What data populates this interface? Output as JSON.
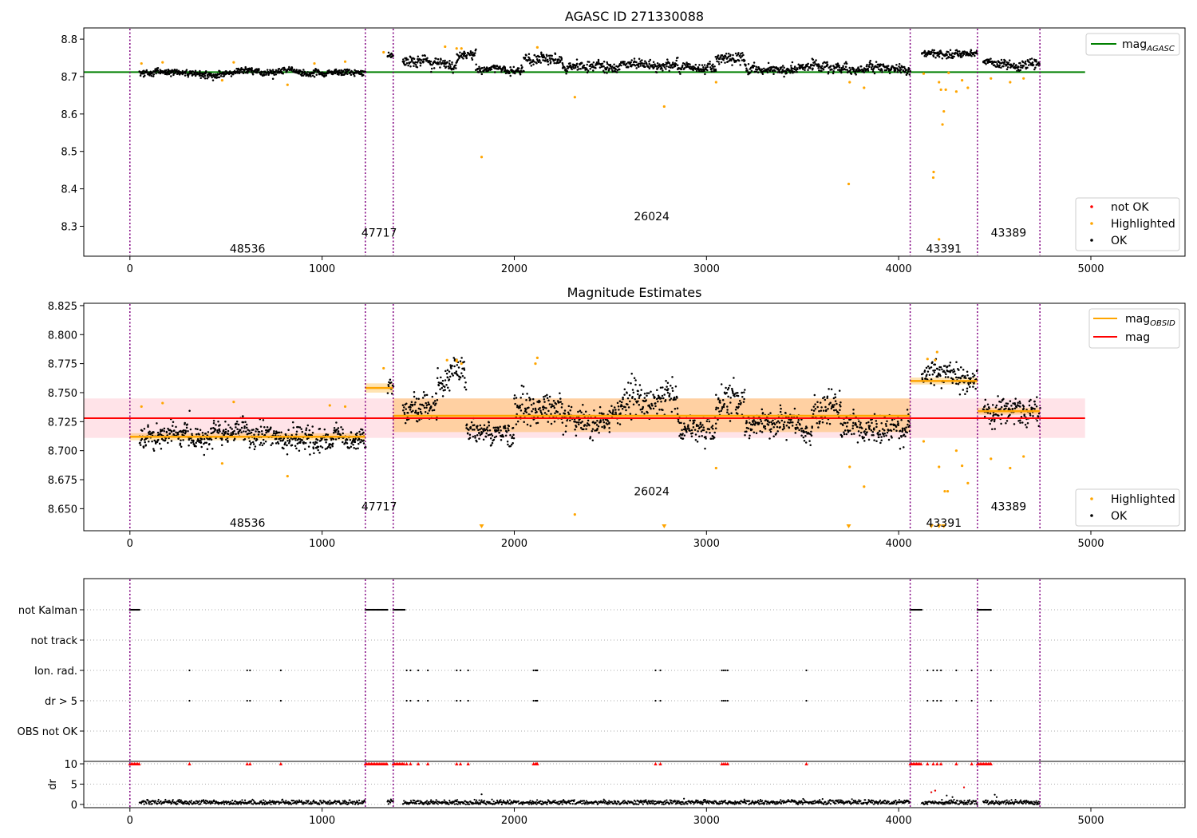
{
  "chart_data": [
    {
      "type": "scatter",
      "title": "AGASC ID 271330088",
      "xlim": [
        -240,
        5490
      ],
      "ylim": [
        8.22,
        8.83
      ],
      "xticks": [
        0,
        1000,
        2000,
        3000,
        4000,
        5000
      ],
      "yticks": [
        8.3,
        8.4,
        8.5,
        8.6,
        8.7,
        8.8
      ],
      "ytick_labels": [
        "8.3",
        "8.4",
        "8.5",
        "8.6",
        "8.7",
        "8.8"
      ],
      "legend_top": {
        "position": "top-right",
        "entries": [
          {
            "label_main": "mag",
            "label_sub": "AGASC",
            "color": "#008000"
          }
        ]
      },
      "legend_bottom": {
        "position": "bottom-right",
        "entries": [
          {
            "label": "not OK",
            "color": "#ff0000"
          },
          {
            "label": "Highlighted",
            "color": "#ffa500"
          },
          {
            "label": "OK",
            "color": "#000000"
          }
        ]
      },
      "mag_agasc": 8.712,
      "mag_agasc_x": [
        -240,
        4970
      ],
      "obsid_boundaries": [
        0,
        1225,
        1370,
        4060,
        4410,
        4735
      ],
      "obsid_labels": [
        {
          "text": "48536",
          "x": 612,
          "y": 8.24
        },
        {
          "text": "47717",
          "x": 1297,
          "y": 8.283
        },
        {
          "text": "26024",
          "x": 2715,
          "y": 8.327
        },
        {
          "text": "43391",
          "x": 4235,
          "y": 8.24
        },
        {
          "text": "43389",
          "x": 4572,
          "y": 8.283
        }
      ],
      "highlighted_outliers": [
        {
          "x": 1830,
          "y": 8.485
        },
        {
          "x": 2315,
          "y": 8.645
        },
        {
          "x": 2780,
          "y": 8.62
        },
        {
          "x": 3050,
          "y": 8.685
        },
        {
          "x": 3740,
          "y": 8.413
        },
        {
          "x": 3745,
          "y": 8.685
        },
        {
          "x": 3820,
          "y": 8.67
        },
        {
          "x": 4130,
          "y": 8.708
        },
        {
          "x": 4180,
          "y": 8.43
        },
        {
          "x": 4182,
          "y": 8.445
        },
        {
          "x": 4210,
          "y": 8.685
        },
        {
          "x": 4220,
          "y": 8.665
        },
        {
          "x": 4228,
          "y": 8.572
        },
        {
          "x": 4235,
          "y": 8.607
        },
        {
          "x": 4245,
          "y": 8.665
        },
        {
          "x": 4260,
          "y": 8.71
        },
        {
          "x": 4300,
          "y": 8.66
        },
        {
          "x": 4330,
          "y": 8.69
        },
        {
          "x": 4360,
          "y": 8.67
        },
        {
          "x": 4210,
          "y": 8.265
        },
        {
          "x": 4480,
          "y": 8.695
        },
        {
          "x": 4580,
          "y": 8.685
        },
        {
          "x": 4650,
          "y": 8.695
        },
        {
          "x": 820,
          "y": 8.678
        },
        {
          "x": 480,
          "y": 8.69
        }
      ],
      "series_segments": [
        {
          "x0": 50,
          "x1": 1225,
          "level": 8.71,
          "amp": 0.007,
          "density": 0.5
        },
        {
          "x0": 1340,
          "x1": 1370,
          "level": 8.755,
          "amp": 0.006,
          "density": 0.4
        },
        {
          "x0": 1420,
          "x1": 1700,
          "level": 8.74,
          "amp": 0.012,
          "density": 0.45
        },
        {
          "x0": 1700,
          "x1": 1800,
          "level": 8.755,
          "amp": 0.01,
          "density": 0.45
        },
        {
          "x0": 1800,
          "x1": 2050,
          "level": 8.72,
          "amp": 0.008,
          "density": 0.45
        },
        {
          "x0": 2050,
          "x1": 2250,
          "level": 8.745,
          "amp": 0.012,
          "density": 0.45
        },
        {
          "x0": 2250,
          "x1": 2550,
          "level": 8.725,
          "amp": 0.01,
          "density": 0.45
        },
        {
          "x0": 2550,
          "x1": 2850,
          "level": 8.735,
          "amp": 0.012,
          "density": 0.45
        },
        {
          "x0": 2850,
          "x1": 3050,
          "level": 8.722,
          "amp": 0.01,
          "density": 0.45
        },
        {
          "x0": 3050,
          "x1": 3200,
          "level": 8.745,
          "amp": 0.012,
          "density": 0.45
        },
        {
          "x0": 3200,
          "x1": 3550,
          "level": 8.72,
          "amp": 0.01,
          "density": 0.45
        },
        {
          "x0": 3550,
          "x1": 3700,
          "level": 8.73,
          "amp": 0.012,
          "density": 0.45
        },
        {
          "x0": 3700,
          "x1": 4060,
          "level": 8.72,
          "amp": 0.01,
          "density": 0.45
        },
        {
          "x0": 4120,
          "x1": 4410,
          "level": 8.762,
          "amp": 0.008,
          "density": 0.45
        },
        {
          "x0": 4440,
          "x1": 4735,
          "level": 8.735,
          "amp": 0.009,
          "density": 0.45
        }
      ]
    },
    {
      "type": "scatter",
      "title": "Magnitude Estimates",
      "xlim": [
        -240,
        5490
      ],
      "ylim": [
        8.631,
        8.827
      ],
      "xticks": [
        0,
        1000,
        2000,
        3000,
        4000,
        5000
      ],
      "yticks": [
        8.65,
        8.675,
        8.7,
        8.725,
        8.75,
        8.775,
        8.8,
        8.825
      ],
      "ytick_labels": [
        "8.650",
        "8.675",
        "8.700",
        "8.725",
        "8.750",
        "8.775",
        "8.800",
        "8.825"
      ],
      "legend_top": {
        "position": "top-right",
        "entries": [
          {
            "label_main": "mag",
            "label_sub": "OBSID",
            "color": "#ffa500"
          },
          {
            "label_main": "mag",
            "label_sub": "",
            "color": "#ff0000"
          }
        ]
      },
      "legend_bottom": {
        "position": "bottom-right",
        "entries": [
          {
            "label": "Highlighted",
            "color": "#ffa500"
          },
          {
            "label": "OK",
            "color": "#000000"
          }
        ]
      },
      "mag_line": 8.728,
      "mag_line_x": [
        -240,
        4970
      ],
      "mag_band": [
        8.711,
        8.745
      ],
      "obsid_boundaries": [
        0,
        1225,
        1370,
        4060,
        4410,
        4735
      ],
      "obsid_mags": [
        {
          "x0": 0,
          "x1": 1225,
          "mag": 8.712,
          "band": [
            8.709,
            8.715
          ]
        },
        {
          "x0": 1225,
          "x1": 1370,
          "mag": 8.754,
          "band": [
            8.75,
            8.758
          ]
        },
        {
          "x0": 1370,
          "x1": 4060,
          "mag": 8.73,
          "band": [
            8.716,
            8.745
          ]
        },
        {
          "x0": 4060,
          "x1": 4410,
          "mag": 8.76,
          "band": [
            8.757,
            8.763
          ]
        },
        {
          "x0": 4410,
          "x1": 4735,
          "mag": 8.734,
          "band": [
            8.731,
            8.737
          ]
        }
      ],
      "obsid_labels": [
        {
          "text": "48536",
          "x": 612,
          "y": 8.638
        },
        {
          "text": "47717",
          "x": 1297,
          "y": 8.652
        },
        {
          "text": "26024",
          "x": 2715,
          "y": 8.665
        },
        {
          "text": "43391",
          "x": 4235,
          "y": 8.638
        },
        {
          "text": "43389",
          "x": 4572,
          "y": 8.652
        }
      ],
      "lower_limit_markers": [
        1830,
        2780,
        3740,
        4170,
        4210,
        4235
      ],
      "series_segments": [
        {
          "x0": 50,
          "x1": 1225,
          "level": 8.712,
          "amp": 0.008,
          "density": 0.5
        },
        {
          "x0": 1340,
          "x1": 1370,
          "level": 8.755,
          "amp": 0.006,
          "density": 0.4
        },
        {
          "x0": 1420,
          "x1": 1600,
          "level": 8.737,
          "amp": 0.01,
          "density": 0.45
        },
        {
          "x0": 1600,
          "x1": 1750,
          "level": 8.755,
          "amp": 0.01,
          "density": 0.45
        },
        {
          "x0": 1750,
          "x1": 2000,
          "level": 8.718,
          "amp": 0.008,
          "density": 0.45
        },
        {
          "x0": 2000,
          "x1": 2250,
          "level": 8.74,
          "amp": 0.012,
          "density": 0.45
        },
        {
          "x0": 2250,
          "x1": 2550,
          "level": 8.727,
          "amp": 0.009,
          "density": 0.45
        },
        {
          "x0": 2550,
          "x1": 2850,
          "level": 8.738,
          "amp": 0.012,
          "density": 0.45
        },
        {
          "x0": 2850,
          "x1": 3050,
          "level": 8.722,
          "amp": 0.009,
          "density": 0.45
        },
        {
          "x0": 3050,
          "x1": 3200,
          "level": 8.745,
          "amp": 0.012,
          "density": 0.45
        },
        {
          "x0": 3200,
          "x1": 3550,
          "level": 8.72,
          "amp": 0.009,
          "density": 0.45
        },
        {
          "x0": 3550,
          "x1": 3700,
          "level": 8.735,
          "amp": 0.012,
          "density": 0.45
        },
        {
          "x0": 3700,
          "x1": 4060,
          "level": 8.718,
          "amp": 0.009,
          "density": 0.45
        },
        {
          "x0": 4120,
          "x1": 4410,
          "level": 8.762,
          "amp": 0.008,
          "density": 0.45
        },
        {
          "x0": 4440,
          "x1": 4735,
          "level": 8.733,
          "amp": 0.009,
          "density": 0.45
        }
      ],
      "highlighted_outliers": [
        {
          "x": 820,
          "y": 8.678
        },
        {
          "x": 480,
          "y": 8.689
        },
        {
          "x": 2315,
          "y": 8.645
        },
        {
          "x": 3050,
          "y": 8.685
        },
        {
          "x": 3745,
          "y": 8.686
        },
        {
          "x": 3820,
          "y": 8.669
        },
        {
          "x": 4130,
          "y": 8.708
        },
        {
          "x": 4210,
          "y": 8.686
        },
        {
          "x": 4240,
          "y": 8.665
        },
        {
          "x": 4255,
          "y": 8.665
        },
        {
          "x": 4300,
          "y": 8.7
        },
        {
          "x": 4330,
          "y": 8.687
        },
        {
          "x": 4360,
          "y": 8.672
        },
        {
          "x": 4480,
          "y": 8.693
        },
        {
          "x": 4580,
          "y": 8.685
        },
        {
          "x": 4650,
          "y": 8.695
        },
        {
          "x": 1700,
          "y": 8.778
        },
        {
          "x": 2120,
          "y": 8.78
        },
        {
          "x": 4200,
          "y": 8.785
        }
      ]
    },
    {
      "type": "scatter",
      "title": "",
      "xlim": [
        -240,
        5490
      ],
      "xticks": [
        0,
        1000,
        2000,
        3000,
        4000,
        5000
      ],
      "flag_rows": [
        "not Kalman",
        "not track",
        "Ion. rad.",
        "dr > 5",
        "OBS not OK"
      ],
      "dr_ylabel": "dr",
      "dr_yticks": [
        0,
        5,
        10
      ],
      "dr_ylim": [
        -0.8,
        10.6
      ],
      "obsid_boundaries": [
        0,
        1225,
        1370,
        4060,
        4410,
        4735
      ],
      "not_kalman_ranges": [
        [
          0,
          50
        ],
        [
          1225,
          1340
        ],
        [
          1370,
          1430
        ],
        [
          4060,
          4120
        ],
        [
          4410,
          4480
        ]
      ],
      "ion_rad_points": [
        310,
        610,
        625,
        785,
        1440,
        1460,
        1500,
        1550,
        1700,
        1720,
        1760,
        2100,
        2110,
        2115,
        2120,
        2735,
        2760,
        3080,
        3090,
        3100,
        3110,
        3520,
        4150,
        4180,
        4200,
        4220,
        4300,
        4380,
        4480
      ],
      "dr_gt5_points": [
        310,
        610,
        625,
        785,
        1440,
        1460,
        1500,
        1550,
        1700,
        1720,
        1760,
        2100,
        2110,
        2115,
        2120,
        2735,
        2760,
        3080,
        3090,
        3100,
        3110,
        3520,
        4150,
        4180,
        4200,
        4220,
        4300,
        4380,
        4480
      ],
      "dr_outliers": [
        {
          "x": 1830,
          "y": 2.5
        },
        {
          "x": 4170,
          "y": 3.0
        },
        {
          "x": 4190,
          "y": 3.4
        },
        {
          "x": 4250,
          "y": 2.2
        },
        {
          "x": 4280,
          "y": 1.8
        },
        {
          "x": 4340,
          "y": 4.2
        },
        {
          "x": 4500,
          "y": 2.4
        },
        {
          "x": 4510,
          "y": 1.8
        }
      ]
    }
  ]
}
